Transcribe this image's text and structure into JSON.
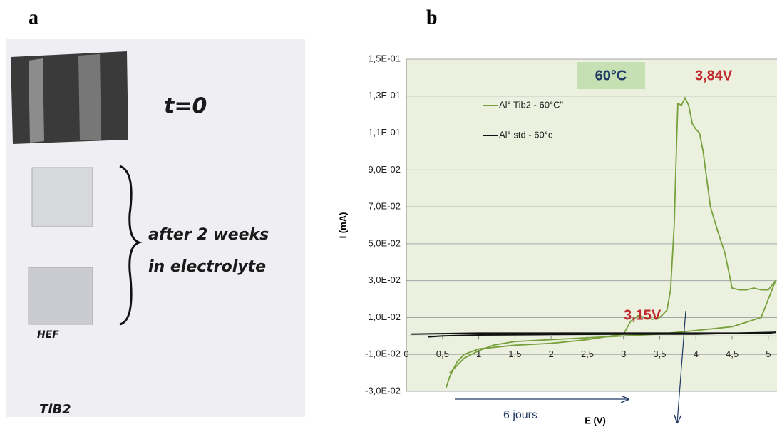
{
  "panels": {
    "a": "a",
    "b": "b"
  },
  "photo": {
    "labels": [
      "t=0",
      "after 2 weeks",
      "in electrolyte",
      "HEF",
      "TiB2"
    ]
  },
  "chart_data": {
    "type": "line",
    "xlabel": "E (V)",
    "ylabel": "I (mA)",
    "annotations": [
      "60°C",
      "3,84V",
      "3,15V",
      "6 jours"
    ],
    "xlim": [
      0,
      5.12
    ],
    "xticks": [
      0,
      {
        "value": 0.5,
        "label": "0,5"
      },
      1,
      {
        "value": 1.5,
        "label": "1,5"
      },
      2,
      {
        "value": 2.5,
        "label": "2,5"
      },
      3,
      {
        "value": 3.5,
        "label": "3,5"
      },
      4,
      {
        "value": 4.5,
        "label": "4,5"
      },
      5
    ],
    "ylim": [
      -0.03,
      0.15
    ],
    "yticks": [
      {
        "value": -0.03,
        "label": "-3,0E-02"
      },
      {
        "value": -0.01,
        "label": "-1,0E-02"
      },
      {
        "value": 0.01,
        "label": "1,0E-02"
      },
      {
        "value": 0.03,
        "label": "3,0E-02"
      },
      {
        "value": 0.05,
        "label": "5,0E-02"
      },
      {
        "value": 0.07,
        "label": "7,0E-02"
      },
      {
        "value": 0.09,
        "label": "9,0E-02"
      },
      {
        "value": 0.11,
        "label": "1,1E-01"
      },
      {
        "value": 0.13,
        "label": "1,3E-01"
      },
      {
        "value": 0.15,
        "label": "1,5E-01"
      }
    ],
    "grid": true,
    "series": [
      {
        "name": "Al° Tib2 - 60°C\"",
        "color": "#77a03c",
        "x": [
          0.55,
          0.6,
          0.7,
          0.8,
          1.0,
          1.5,
          2.0,
          2.5,
          3.0,
          3.1,
          3.2,
          3.3,
          3.4,
          3.5,
          3.6,
          3.65,
          3.7,
          3.73,
          3.75,
          3.8,
          3.85,
          3.9,
          3.95,
          4.0,
          4.05,
          4.1,
          4.2,
          4.3,
          4.4,
          4.5,
          4.6,
          4.7,
          4.8,
          4.9,
          5.0,
          5.1,
          5.0,
          4.9,
          4.5,
          4.0,
          3.5,
          3.0,
          2.5,
          2.0,
          1.5,
          1.2,
          1.0,
          0.8,
          0.6
        ],
        "values": [
          -0.028,
          -0.022,
          -0.014,
          -0.01,
          -0.007,
          -0.005,
          -0.004,
          -0.002,
          0.001,
          0.008,
          0.011,
          0.01,
          0.009,
          0.01,
          0.014,
          0.025,
          0.06,
          0.1,
          0.126,
          0.125,
          0.129,
          0.125,
          0.115,
          0.112,
          0.11,
          0.1,
          0.07,
          0.057,
          0.045,
          0.026,
          0.025,
          0.025,
          0.026,
          0.025,
          0.025,
          0.03,
          0.02,
          0.01,
          0.005,
          0.003,
          0.001,
          0.0,
          -0.001,
          -0.002,
          -0.003,
          -0.005,
          -0.008,
          -0.012,
          -0.02
        ]
      },
      {
        "name": "Al° std - 60°c",
        "color": "#111111",
        "x": [
          0.07,
          1.0,
          2.0,
          3.0,
          4.0,
          5.0,
          5.1,
          4.0,
          3.0,
          2.0,
          1.0,
          0.5,
          0.3
        ],
        "values": [
          0.001,
          0.0015,
          0.0015,
          0.0015,
          0.0015,
          0.0015,
          0.002,
          0.001,
          0.001,
          0.0008,
          0.0005,
          0.0,
          -0.0005
        ]
      }
    ]
  }
}
